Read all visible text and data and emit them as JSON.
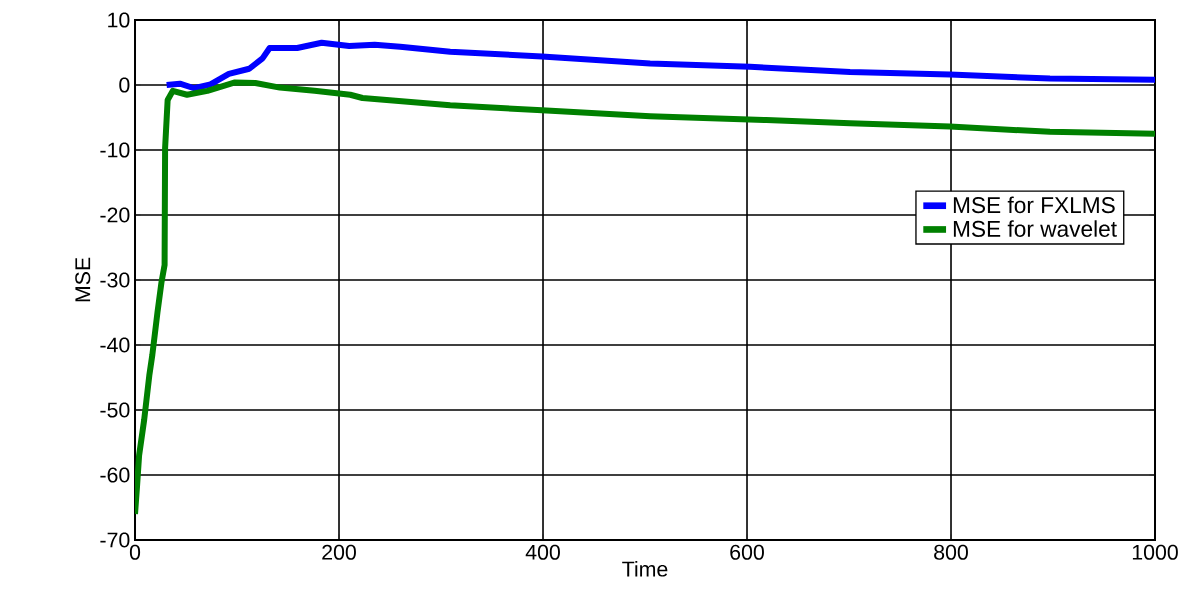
{
  "chart_data": {
    "type": "line",
    "xlabel": "Time",
    "ylabel": "MSE",
    "xlim": [
      0,
      1000
    ],
    "ylim": [
      -70,
      10
    ],
    "xticks": [
      0,
      200,
      400,
      600,
      800,
      1000
    ],
    "yticks": [
      -70,
      -60,
      -50,
      -40,
      -30,
      -20,
      -10,
      0,
      10
    ],
    "grid": true,
    "legend": "right",
    "line_style": "solid",
    "marker": "none",
    "series": [
      {
        "name": "MSE for FXLMS",
        "color": "#0000ff",
        "x": [
          31,
          44,
          58,
          74,
          92,
          112,
          125,
          132,
          159,
          183,
          210,
          235,
          260,
          309,
          399,
          505,
          603,
          701,
          799,
          897,
          1000
        ],
        "values": [
          0,
          0.2,
          -0.5,
          0.1,
          1.7,
          2.5,
          4.1,
          5.7,
          5.7,
          6.5,
          6,
          6.2,
          5.9,
          5.1,
          4.4,
          3.3,
          2.8,
          2,
          1.6,
          1,
          0.8
        ]
      },
      {
        "name": "MSE for wavelet",
        "color": "#008000",
        "x": [
          0,
          2,
          4,
          9,
          14,
          17,
          22,
          26,
          29,
          29.5,
          32,
          37,
          51,
          71,
          98,
          118,
          142,
          176,
          211,
          223,
          309,
          399,
          505,
          619,
          701,
          799,
          897,
          1000
        ],
        "values": [
          -66,
          -61.7,
          -57,
          -51.5,
          -44.7,
          -41.5,
          -35,
          -30.3,
          -27.7,
          -9.7,
          -2.3,
          -0.9,
          -1.5,
          -0.9,
          0.4,
          0.3,
          -0.4,
          -0.9,
          -1.5,
          -2,
          -3.1,
          -3.9,
          -4.8,
          -5.4,
          -5.9,
          -6.4,
          -7.2,
          -7.5
        ]
      }
    ]
  }
}
